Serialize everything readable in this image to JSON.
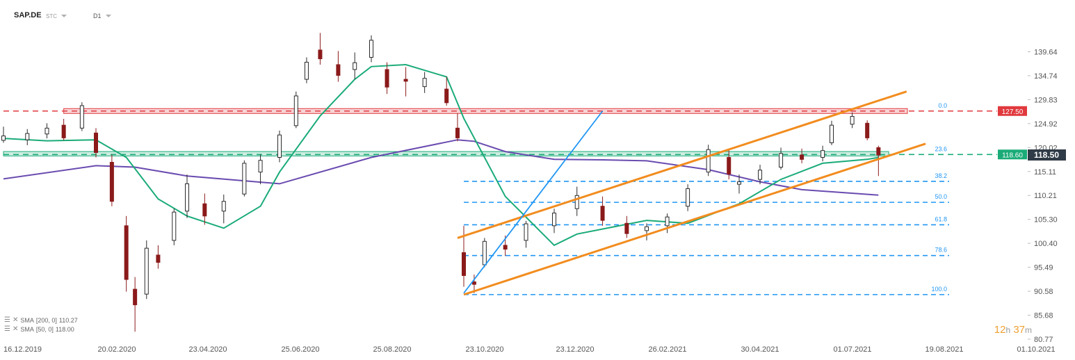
{
  "header": {
    "symbol": "SAP.DE",
    "mode": "STC",
    "interval": "D1"
  },
  "indicators": [
    {
      "label": "SMA",
      "params": "[200, 0]",
      "value": "110.27",
      "color": "#6a4bb0"
    },
    {
      "label": "SMA",
      "params": "[50, 0]",
      "value": "118.00",
      "color": "#1aab78"
    }
  ],
  "countdown": {
    "hours": "12",
    "h_unit": "h",
    "minutes": "37",
    "m_unit": "m"
  },
  "chart_data": {
    "type": "candlestick",
    "instrument": "SAP.DE",
    "timeframe": "D1",
    "x_range": [
      "2019-12-16",
      "2021-10-01"
    ],
    "x_tick_labels": [
      "16.12.2019",
      "20.02.2020",
      "23.04.2020",
      "25.06.2020",
      "25.08.2020",
      "23.10.2020",
      "23.12.2020",
      "26.02.2021",
      "30.04.2021",
      "01.07.2021",
      "19.08.2021",
      "01.10.2021"
    ],
    "y_range": [
      80.77,
      144.55
    ],
    "y_tick_labels": [
      "139.64",
      "134.74",
      "129.83",
      "124.92",
      "120.02",
      "115.11",
      "110.21",
      "105.30",
      "100.40",
      "95.49",
      "90.58",
      "85.68",
      "80.77"
    ],
    "current_price": 118.5,
    "price_levels": [
      {
        "label": "127.50",
        "value": 127.5,
        "color": "#e0393e",
        "style": "dashed"
      },
      {
        "label": "118.60",
        "value": 118.6,
        "color": "#1aab78",
        "style": "dashed"
      }
    ],
    "zones": [
      {
        "name": "resistance",
        "from": 127.0,
        "to": 128.0,
        "color": "#e0393e"
      },
      {
        "name": "support",
        "from": 118.3,
        "to": 119.2,
        "color": "#1aab78"
      }
    ],
    "fibonacci": {
      "color": "#2196f3",
      "levels": [
        {
          "label": "0.0",
          "value": 127.5
        },
        {
          "label": "23.6",
          "value": 118.6
        },
        {
          "label": "38.2",
          "value": 113.1
        },
        {
          "label": "50.0",
          "value": 108.8
        },
        {
          "label": "61.8",
          "value": 104.2
        },
        {
          "label": "78.6",
          "value": 97.9
        },
        {
          "label": "100.0",
          "value": 89.9
        }
      ]
    },
    "trendlines": [
      {
        "name": "upper channel",
        "color": "#f28c1e",
        "from": [
          "2020-10-19",
          101.5
        ],
        "to": [
          "2021-08-10",
          131.5
        ]
      },
      {
        "name": "lower channel",
        "color": "#f28c1e",
        "from": [
          "2020-10-23",
          89.9
        ],
        "to": [
          "2021-08-20",
          120.8
        ]
      },
      {
        "name": "fib anchor line",
        "color": "#2196f3",
        "from": [
          "2020-10-23",
          90.2
        ],
        "to": [
          "2021-01-26",
          127.5
        ]
      }
    ],
    "candles": [
      {
        "date": "2019-12-16",
        "o": 121.5,
        "h": 124.3,
        "l": 121.0,
        "c": 122.4
      },
      {
        "date": "2020-01-02",
        "o": 121.6,
        "h": 123.8,
        "l": 120.5,
        "c": 122.9
      },
      {
        "date": "2020-01-16",
        "o": 122.8,
        "h": 125.0,
        "l": 121.9,
        "c": 124.0
      },
      {
        "date": "2020-01-28",
        "o": 124.6,
        "h": 125.9,
        "l": 121.5,
        "c": 122.0
      },
      {
        "date": "2020-02-10",
        "o": 124.0,
        "h": 129.3,
        "l": 123.4,
        "c": 128.6
      },
      {
        "date": "2020-02-20",
        "o": 123.0,
        "h": 124.0,
        "l": 118.0,
        "c": 119.0
      },
      {
        "date": "2020-03-02",
        "o": 117.0,
        "h": 118.6,
        "l": 108.0,
        "c": 109.0
      },
      {
        "date": "2020-03-12",
        "o": 104.0,
        "h": 106.0,
        "l": 90.5,
        "c": 93.0
      },
      {
        "date": "2020-03-18",
        "o": 91.0,
        "h": 93.5,
        "l": 82.3,
        "c": 87.8
      },
      {
        "date": "2020-03-26",
        "o": 90.0,
        "h": 101.0,
        "l": 89.0,
        "c": 99.4
      },
      {
        "date": "2020-04-03",
        "o": 98.0,
        "h": 100.0,
        "l": 95.2,
        "c": 96.5
      },
      {
        "date": "2020-04-14",
        "o": 101.0,
        "h": 107.5,
        "l": 100.0,
        "c": 106.8
      },
      {
        "date": "2020-04-23",
        "o": 107.0,
        "h": 114.5,
        "l": 105.6,
        "c": 112.6
      },
      {
        "date": "2020-05-05",
        "o": 108.5,
        "h": 110.6,
        "l": 104.2,
        "c": 106.0
      },
      {
        "date": "2020-05-18",
        "o": 107.0,
        "h": 110.4,
        "l": 104.5,
        "c": 109.0
      },
      {
        "date": "2020-06-01",
        "o": 110.5,
        "h": 117.4,
        "l": 110.0,
        "c": 116.8
      },
      {
        "date": "2020-06-12",
        "o": 115.0,
        "h": 118.6,
        "l": 112.5,
        "c": 117.4
      },
      {
        "date": "2020-06-25",
        "o": 118.0,
        "h": 123.5,
        "l": 117.0,
        "c": 122.6
      },
      {
        "date": "2020-07-06",
        "o": 124.5,
        "h": 131.5,
        "l": 124.0,
        "c": 130.6
      },
      {
        "date": "2020-07-13",
        "o": 134.0,
        "h": 138.5,
        "l": 133.2,
        "c": 137.5
      },
      {
        "date": "2020-07-22",
        "o": 140.0,
        "h": 143.5,
        "l": 137.0,
        "c": 138.2
      },
      {
        "date": "2020-08-03",
        "o": 137.0,
        "h": 139.8,
        "l": 133.5,
        "c": 134.8
      },
      {
        "date": "2020-08-14",
        "o": 136.0,
        "h": 139.5,
        "l": 134.0,
        "c": 137.4
      },
      {
        "date": "2020-08-25",
        "o": 138.5,
        "h": 143.0,
        "l": 137.5,
        "c": 142.0
      },
      {
        "date": "2020-09-04",
        "o": 136.0,
        "h": 137.5,
        "l": 131.0,
        "c": 132.4
      },
      {
        "date": "2020-09-16",
        "o": 134.0,
        "h": 136.5,
        "l": 130.5,
        "c": 133.6
      },
      {
        "date": "2020-09-28",
        "o": 132.5,
        "h": 135.5,
        "l": 131.2,
        "c": 134.2
      },
      {
        "date": "2020-10-12",
        "o": 132.0,
        "h": 134.5,
        "l": 128.6,
        "c": 129.2
      },
      {
        "date": "2020-10-19",
        "o": 124.0,
        "h": 127.0,
        "l": 121.3,
        "c": 122.0
      },
      {
        "date": "2020-10-23",
        "o": 98.5,
        "h": 104.0,
        "l": 91.5,
        "c": 93.8
      },
      {
        "date": "2020-10-30",
        "o": 92.5,
        "h": 94.0,
        "l": 90.2,
        "c": 92.0
      },
      {
        "date": "2020-11-06",
        "o": 96.0,
        "h": 101.5,
        "l": 95.5,
        "c": 100.8
      },
      {
        "date": "2020-11-20",
        "o": 100.0,
        "h": 102.0,
        "l": 97.8,
        "c": 99.2
      },
      {
        "date": "2020-12-04",
        "o": 101.0,
        "h": 105.0,
        "l": 99.5,
        "c": 104.4
      },
      {
        "date": "2020-12-23",
        "o": 104.0,
        "h": 107.5,
        "l": 102.5,
        "c": 106.6
      },
      {
        "date": "2021-01-08",
        "o": 107.5,
        "h": 112.0,
        "l": 106.0,
        "c": 110.2
      },
      {
        "date": "2021-01-26",
        "o": 108.0,
        "h": 110.0,
        "l": 104.0,
        "c": 105.1
      },
      {
        "date": "2021-02-12",
        "o": 104.5,
        "h": 106.0,
        "l": 101.5,
        "c": 102.4
      },
      {
        "date": "2021-02-26",
        "o": 103.0,
        "h": 104.5,
        "l": 101.0,
        "c": 103.8
      },
      {
        "date": "2021-03-12",
        "o": 104.0,
        "h": 106.5,
        "l": 102.5,
        "c": 105.8
      },
      {
        "date": "2021-03-26",
        "o": 108.0,
        "h": 112.5,
        "l": 107.0,
        "c": 111.6
      },
      {
        "date": "2021-04-09",
        "o": 115.0,
        "h": 120.6,
        "l": 114.2,
        "c": 119.6
      },
      {
        "date": "2021-04-23",
        "o": 118.0,
        "h": 119.5,
        "l": 113.5,
        "c": 114.6
      },
      {
        "date": "2021-04-30",
        "o": 112.5,
        "h": 114.5,
        "l": 110.6,
        "c": 113.0
      },
      {
        "date": "2021-05-14",
        "o": 113.5,
        "h": 116.5,
        "l": 112.5,
        "c": 115.4
      },
      {
        "date": "2021-05-28",
        "o": 116.0,
        "h": 120.0,
        "l": 115.5,
        "c": 118.8
      },
      {
        "date": "2021-06-11",
        "o": 118.5,
        "h": 119.8,
        "l": 116.8,
        "c": 117.6
      },
      {
        "date": "2021-06-25",
        "o": 118.0,
        "h": 120.4,
        "l": 117.2,
        "c": 119.4
      },
      {
        "date": "2021-07-01",
        "o": 121.0,
        "h": 125.5,
        "l": 120.5,
        "c": 124.6
      },
      {
        "date": "2021-07-12",
        "o": 124.8,
        "h": 127.2,
        "l": 124.0,
        "c": 126.4
      },
      {
        "date": "2021-07-20",
        "o": 125.0,
        "h": 125.6,
        "l": 121.5,
        "c": 122.0
      },
      {
        "date": "2021-07-26",
        "o": 120.0,
        "h": 120.4,
        "l": 114.2,
        "c": 118.5
      }
    ],
    "sma": [
      {
        "name": "SMA 200",
        "color": "#6a4bb0",
        "points": [
          [
            "2019-12-16",
            113.6
          ],
          [
            "2020-02-20",
            116.3
          ],
          [
            "2020-03-18",
            116.0
          ],
          [
            "2020-04-23",
            114.2
          ],
          [
            "2020-06-25",
            112.6
          ],
          [
            "2020-08-25",
            118.0
          ],
          [
            "2020-10-19",
            121.6
          ],
          [
            "2020-10-30",
            121.3
          ],
          [
            "2020-11-20",
            119.2
          ],
          [
            "2020-12-23",
            117.6
          ],
          [
            "2021-01-26",
            117.5
          ],
          [
            "2021-02-26",
            117.3
          ],
          [
            "2021-04-09",
            115.5
          ],
          [
            "2021-05-14",
            113.0
          ],
          [
            "2021-06-11",
            111.4
          ],
          [
            "2021-07-26",
            110.27
          ]
        ]
      },
      {
        "name": "SMA 50",
        "color": "#1aab78",
        "points": [
          [
            "2019-12-16",
            121.9
          ],
          [
            "2020-01-16",
            121.4
          ],
          [
            "2020-02-20",
            121.6
          ],
          [
            "2020-03-12",
            118.0
          ],
          [
            "2020-04-03",
            109.5
          ],
          [
            "2020-04-23",
            106.0
          ],
          [
            "2020-05-18",
            103.5
          ],
          [
            "2020-06-12",
            108.0
          ],
          [
            "2020-06-25",
            115.0
          ],
          [
            "2020-07-22",
            126.5
          ],
          [
            "2020-08-14",
            134.0
          ],
          [
            "2020-08-25",
            136.6
          ],
          [
            "2020-09-16",
            137.0
          ],
          [
            "2020-10-12",
            134.5
          ],
          [
            "2020-10-23",
            126.0
          ],
          [
            "2020-11-20",
            110.0
          ],
          [
            "2020-12-23",
            100.0
          ],
          [
            "2021-01-08",
            102.3
          ],
          [
            "2021-02-26",
            105.1
          ],
          [
            "2021-03-26",
            104.5
          ],
          [
            "2021-04-30",
            108.5
          ],
          [
            "2021-05-28",
            113.5
          ],
          [
            "2021-06-25",
            116.8
          ],
          [
            "2021-07-20",
            117.6
          ],
          [
            "2021-07-26",
            118.0
          ]
        ]
      }
    ]
  }
}
